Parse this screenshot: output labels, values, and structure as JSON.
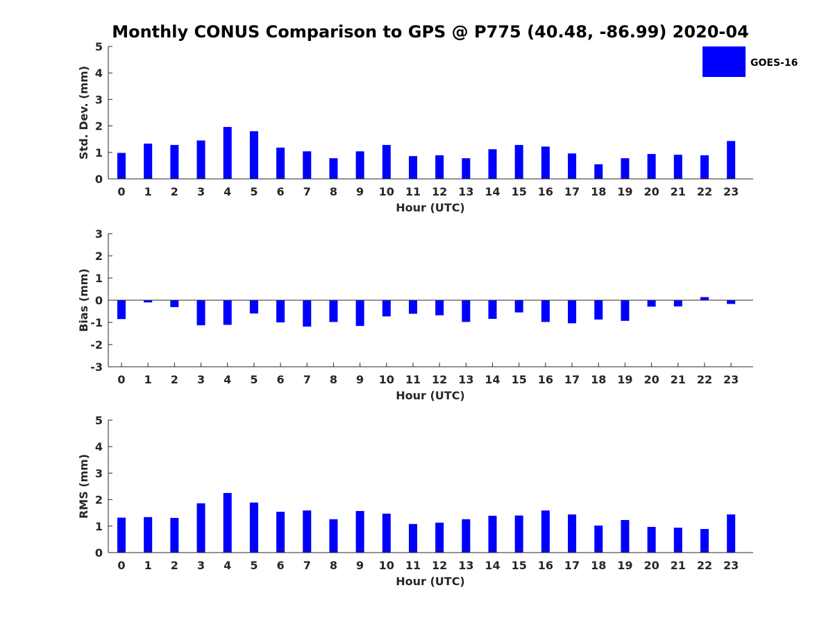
{
  "chart_data": {
    "title": "Monthly CONUS Comparison to GPS @ P775 (40.48, -86.99) 2020-04",
    "legend": {
      "label": "GOES-16",
      "color": "#0000ff",
      "placement": "top-right"
    },
    "subplots": [
      {
        "type": "bar",
        "xlabel": "Hour (UTC)",
        "ylabel": "Std. Dev. (mm)",
        "ylim": [
          0,
          5
        ],
        "yticks": [
          0,
          1,
          2,
          3,
          4,
          5
        ],
        "categories": [
          "0",
          "1",
          "2",
          "3",
          "4",
          "5",
          "6",
          "7",
          "8",
          "9",
          "10",
          "11",
          "12",
          "13",
          "14",
          "15",
          "16",
          "17",
          "18",
          "19",
          "20",
          "21",
          "22",
          "23"
        ],
        "series": [
          {
            "name": "GOES-16",
            "values": [
              0.98,
              1.33,
              1.28,
              1.45,
              1.96,
              1.8,
              1.18,
              1.04,
              0.78,
              1.04,
              1.28,
              0.86,
              0.89,
              0.78,
              1.12,
              1.28,
              1.22,
              0.96,
              0.55,
              0.78,
              0.94,
              0.91,
              0.89,
              1.43
            ]
          }
        ]
      },
      {
        "type": "bar",
        "xlabel": "Hour (UTC)",
        "ylabel": "Bias (mm)",
        "ylim": [
          -3,
          3
        ],
        "yticks": [
          -3,
          -2,
          -1,
          0,
          1,
          2,
          3
        ],
        "categories": [
          "0",
          "1",
          "2",
          "3",
          "4",
          "5",
          "6",
          "7",
          "8",
          "9",
          "10",
          "11",
          "12",
          "13",
          "14",
          "15",
          "16",
          "17",
          "18",
          "19",
          "20",
          "21",
          "22",
          "23"
        ],
        "series": [
          {
            "name": "GOES-16",
            "values": [
              -0.85,
              -0.1,
              -0.31,
              -1.13,
              -1.11,
              -0.6,
              -1.0,
              -1.19,
              -0.98,
              -1.16,
              -0.73,
              -0.61,
              -0.68,
              -0.98,
              -0.84,
              -0.55,
              -0.98,
              -1.04,
              -0.87,
              -0.93,
              -0.29,
              -0.28,
              0.14,
              -0.17
            ]
          }
        ]
      },
      {
        "type": "bar",
        "xlabel": "Hour (UTC)",
        "ylabel": "RMS (mm)",
        "ylim": [
          0,
          5
        ],
        "yticks": [
          0,
          1,
          2,
          3,
          4,
          5
        ],
        "categories": [
          "0",
          "1",
          "2",
          "3",
          "4",
          "5",
          "6",
          "7",
          "8",
          "9",
          "10",
          "11",
          "12",
          "13",
          "14",
          "15",
          "16",
          "17",
          "18",
          "19",
          "20",
          "21",
          "22",
          "23"
        ],
        "series": [
          {
            "name": "GOES-16",
            "values": [
              1.32,
              1.34,
              1.31,
              1.86,
              2.25,
              1.89,
              1.54,
              1.59,
              1.26,
              1.57,
              1.47,
              1.08,
              1.13,
              1.26,
              1.39,
              1.4,
              1.59,
              1.44,
              1.02,
              1.23,
              0.97,
              0.94,
              0.89,
              1.44
            ]
          }
        ]
      }
    ]
  }
}
